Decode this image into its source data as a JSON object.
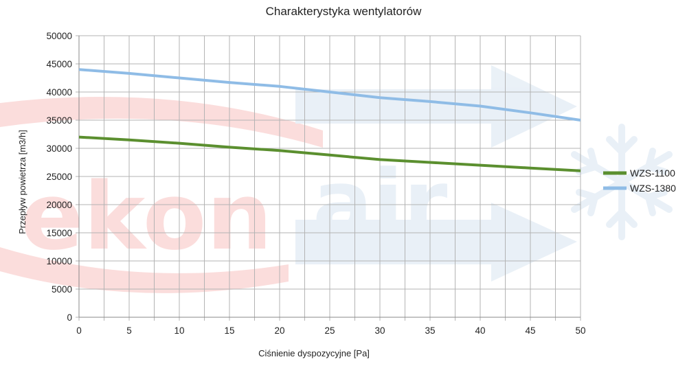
{
  "watermark": {
    "brand_part1": "ekon",
    "brand_part2": "air",
    "brand_color_red": "#e8322b",
    "brand_color_blue": "#7ea6cf",
    "icons": [
      "arrow-icon",
      "snowflake-icon"
    ]
  },
  "colors": {
    "grid": "#b3b3b3",
    "axis": "#888888",
    "text": "#222222"
  },
  "chart_data": {
    "type": "line",
    "title": "Charakterystyka wentylatorów",
    "xlabel": "Ciśnienie dyspozycyjne [Pa]",
    "ylabel": "Przepływ powietrza [m3/h]",
    "xlim": [
      0,
      50
    ],
    "ylim": [
      0,
      50000
    ],
    "xticks": [
      0,
      5,
      10,
      15,
      20,
      25,
      30,
      35,
      40,
      45,
      50
    ],
    "yticks": [
      0,
      5000,
      10000,
      15000,
      20000,
      25000,
      30000,
      35000,
      40000,
      45000,
      50000
    ],
    "x_minor_step": 2.5,
    "grid": true,
    "legend_position": "right",
    "series": [
      {
        "name": "WZS-1100",
        "color": "#5b8f2f",
        "x": [
          0,
          5,
          10,
          15,
          20,
          25,
          30,
          35,
          40,
          45,
          50
        ],
        "y": [
          32000,
          31500,
          30900,
          30200,
          29600,
          28800,
          28000,
          27500,
          27000,
          26500,
          26000
        ]
      },
      {
        "name": "WZS-1380",
        "color": "#8fbce6",
        "x": [
          0,
          5,
          10,
          15,
          20,
          25,
          30,
          35,
          40,
          45,
          50
        ],
        "y": [
          44000,
          43300,
          42500,
          41700,
          41000,
          40000,
          39000,
          38300,
          37500,
          36300,
          35000
        ]
      }
    ]
  }
}
